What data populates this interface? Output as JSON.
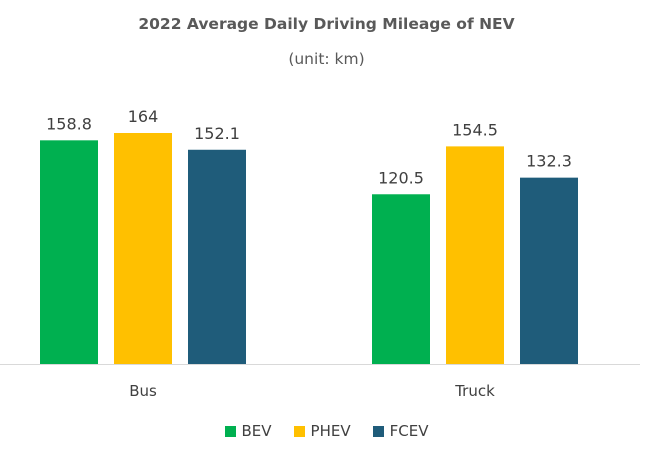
{
  "chart_data": {
    "type": "bar",
    "title": "2022 Average Daily Driving Mileage of NEV",
    "subtitle": "(unit: km)",
    "categories": [
      "Bus",
      "Truck"
    ],
    "series": [
      {
        "name": "BEV",
        "values": [
          158.8,
          120.5
        ],
        "labels": [
          "158.8",
          "120.5"
        ],
        "color": "#00B050"
      },
      {
        "name": "PHEV",
        "values": [
          164,
          154.5
        ],
        "labels": [
          "164",
          "154.5"
        ],
        "color": "#FFC000"
      },
      {
        "name": "FCEV",
        "values": [
          152.1,
          132.3
        ],
        "labels": [
          "152.1",
          "132.3"
        ],
        "color": "#1F5C7A"
      }
    ],
    "ylim": [
      0,
      164
    ],
    "grid": false,
    "legend_position": "bottom"
  }
}
